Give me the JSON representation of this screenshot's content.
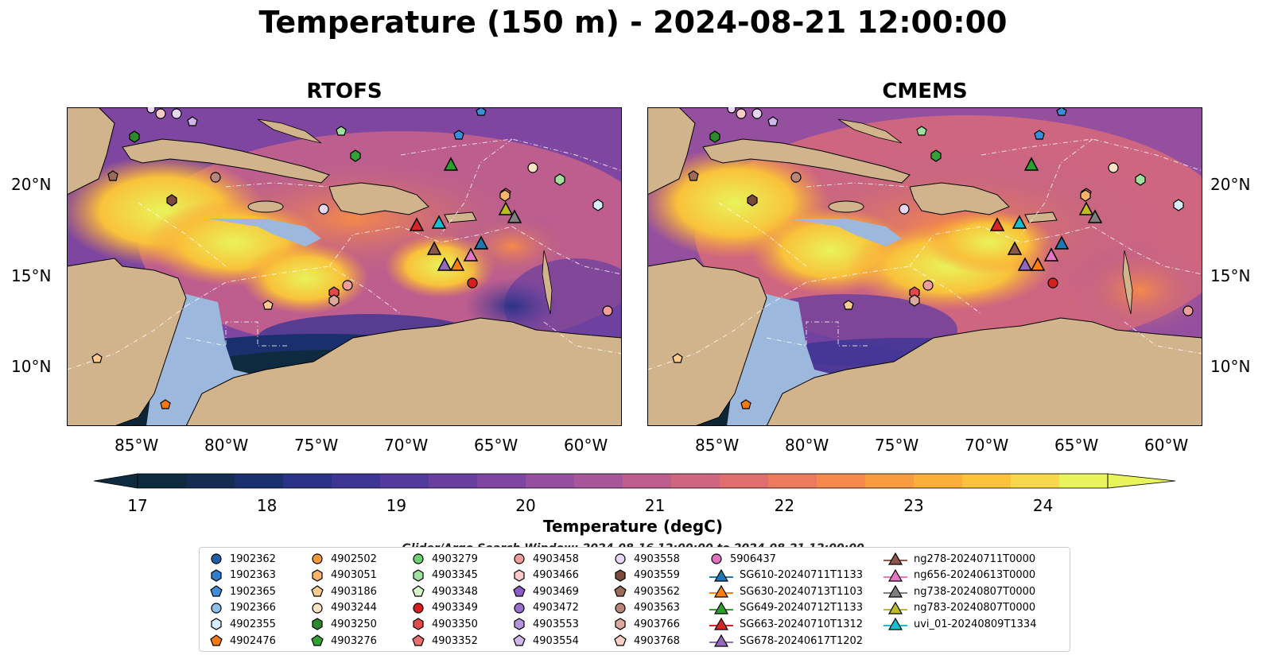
{
  "title": "Temperature (150 m) - 2024-08-21 12:00:00",
  "panels": [
    {
      "title": "RTOFS"
    },
    {
      "title": "CMEMS"
    }
  ],
  "lat_labels": [
    "20°N",
    "15°N",
    "10°N"
  ],
  "lon_labels": [
    "85°W",
    "80°W",
    "75°W",
    "70°W",
    "65°W",
    "60°W"
  ],
  "colorbar": {
    "label": "Temperature (degC)",
    "ticks": [
      "17",
      "18",
      "19",
      "20",
      "21",
      "22",
      "23",
      "24"
    ],
    "min": 17,
    "max": 24.5,
    "colors": [
      "#0e2a3f",
      "#142c52",
      "#1a2f6e",
      "#2a3287",
      "#3c3594",
      "#523b9c",
      "#683f9f",
      "#7e46a0",
      "#944f9f",
      "#a8569a",
      "#bd5e8e",
      "#cf6680",
      "#e06e6e",
      "#ec7a5c",
      "#f5894b",
      "#f99b3f",
      "#fbae38",
      "#fbc33a",
      "#f7d84a",
      "#e9f35a"
    ]
  },
  "window_label": "Glider/Argo Search Window: 2024-08-16 12:00:00 to 2024-08-21 12:00:00",
  "colors": {
    "land": "#d2b48c",
    "shelf": "#9db8dd",
    "deep": "#0d2535"
  },
  "legend": [
    {
      "label": "1902362",
      "marker": "circle",
      "color": "#1f5fa8"
    },
    {
      "label": "1902363",
      "marker": "hexagon",
      "color": "#2f7fd0"
    },
    {
      "label": "1902365",
      "marker": "pentagon",
      "color": "#3b8fd8"
    },
    {
      "label": "1902366",
      "marker": "circle",
      "color": "#8ec0ea"
    },
    {
      "label": "4902355",
      "marker": "hexagon",
      "color": "#d6ecfa"
    },
    {
      "label": "4902476",
      "marker": "pentagon",
      "color": "#f47a10"
    },
    {
      "label": "4902502",
      "marker": "circle",
      "color": "#f79a3a"
    },
    {
      "label": "4903051",
      "marker": "hexagon",
      "color": "#f8b46a"
    },
    {
      "label": "4903186",
      "marker": "pentagon",
      "color": "#fccc8e"
    },
    {
      "label": "4903244",
      "marker": "circle",
      "color": "#fde3c6"
    },
    {
      "label": "4903250",
      "marker": "hexagon",
      "color": "#2c8a2c"
    },
    {
      "label": "4903276",
      "marker": "pentagon",
      "color": "#35a035"
    },
    {
      "label": "4903279",
      "marker": "circle",
      "color": "#6fd06f"
    },
    {
      "label": "4903345",
      "marker": "hexagon",
      "color": "#9ee29e"
    },
    {
      "label": "4903348",
      "marker": "pentagon",
      "color": "#d4f5c8"
    },
    {
      "label": "4903349",
      "marker": "circle",
      "color": "#d62020"
    },
    {
      "label": "4903350",
      "marker": "hexagon",
      "color": "#e24a4a"
    },
    {
      "label": "4903352",
      "marker": "pentagon",
      "color": "#ec6f6f"
    },
    {
      "label": "4903458",
      "marker": "circle",
      "color": "#f39c9c"
    },
    {
      "label": "4903466",
      "marker": "hexagon",
      "color": "#f9c8c8"
    },
    {
      "label": "4903469",
      "marker": "pentagon",
      "color": "#8a5cc6"
    },
    {
      "label": "4903472",
      "marker": "circle",
      "color": "#9a70cf"
    },
    {
      "label": "4903553",
      "marker": "hexagon",
      "color": "#b596dd"
    },
    {
      "label": "4903554",
      "marker": "pentagon",
      "color": "#cfb7ea"
    },
    {
      "label": "4903558",
      "marker": "circle",
      "color": "#e8d6f6"
    },
    {
      "label": "4903559",
      "marker": "hexagon",
      "color": "#7a4a3a"
    },
    {
      "label": "4903562",
      "marker": "pentagon",
      "color": "#9c6a58"
    },
    {
      "label": "4903563",
      "marker": "circle",
      "color": "#b8877a"
    },
    {
      "label": "4903766",
      "marker": "hexagon",
      "color": "#dda99c"
    },
    {
      "label": "4903768",
      "marker": "pentagon",
      "color": "#f8d0c4"
    },
    {
      "label": "5906437",
      "marker": "circle",
      "color": "#e070c0"
    },
    {
      "label": "SG610-20240711T1133",
      "marker": "triangle-line",
      "color": "#1f77b4"
    },
    {
      "label": "SG630-20240713T1103",
      "marker": "triangle-line",
      "color": "#ff7f0e"
    },
    {
      "label": "SG649-20240712T1133",
      "marker": "triangle-line",
      "color": "#2ca02c"
    },
    {
      "label": "SG663-20240710T1312",
      "marker": "triangle-line",
      "color": "#d62728"
    },
    {
      "label": "SG678-20240617T1202",
      "marker": "triangle-line",
      "color": "#9467bd"
    },
    {
      "label": "ng278-20240711T0000",
      "marker": "triangle-line",
      "color": "#8c564b"
    },
    {
      "label": "ng656-20240613T0000",
      "marker": "triangle-line",
      "color": "#e377c2"
    },
    {
      "label": "ng738-20240807T0000",
      "marker": "triangle-line",
      "color": "#7f7f7f"
    },
    {
      "label": "ng783-20240807T0000",
      "marker": "triangle-line",
      "color": "#bcbd22"
    },
    {
      "label": "uvi_01-20240809T1334",
      "marker": "triangle-line",
      "color": "#17becf"
    }
  ]
}
